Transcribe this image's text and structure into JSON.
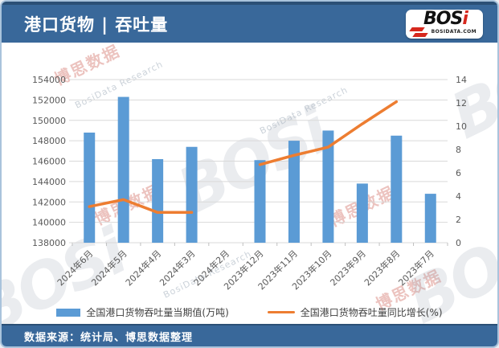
{
  "header": {
    "title": "港口货物 | 吞吐量",
    "logo": {
      "text_main": "BOS",
      "text_i": "i",
      "subtext": "BOSIDATA.COM"
    }
  },
  "footer": {
    "source_label": "数据来源：统计局、博思数据整理"
  },
  "colors": {
    "header_bg": "#39689A",
    "bar": "#5B9BD5",
    "line": "#ED7D31",
    "grid": "#D9D9D9",
    "axis_text": "#595959",
    "tick_mark": "#BFBFBF",
    "logo_red": "#D6281E",
    "frame_border": "#A9C3DC"
  },
  "watermarks": {
    "stamp": "博思数据",
    "research": "BosiData Research",
    "logo": "BOSi"
  },
  "chart_data": {
    "type": "combo bar+line",
    "categories": [
      "2024年6月",
      "2024年5月",
      "2024年4月",
      "2024年3月",
      "2024年2月",
      "2023年12月",
      "2023年11月",
      "2023年10月",
      "2023年9月",
      "2023年8月",
      "2023年7月"
    ],
    "series": [
      {
        "name": "全国港口货物吞吐量当期值(万吨)",
        "type": "bar",
        "axis": "left",
        "values": [
          148800,
          152300,
          146200,
          147400,
          null,
          146100,
          148000,
          149000,
          143800,
          148500,
          142800
        ]
      },
      {
        "name": "全国港口货物吞吐量同比增长(%)",
        "type": "line",
        "axis": "right",
        "values": [
          3.1,
          3.7,
          2.6,
          2.6,
          null,
          6.7,
          7.5,
          8.2,
          10.2,
          12.1,
          null
        ]
      }
    ],
    "left_axis": {
      "min": 138000,
      "max": 154000,
      "step": 2000
    },
    "right_axis": {
      "min": 0,
      "max": 14,
      "step": 2
    },
    "grid": true,
    "legend_position": "bottom",
    "x_label_rotation": -45
  }
}
